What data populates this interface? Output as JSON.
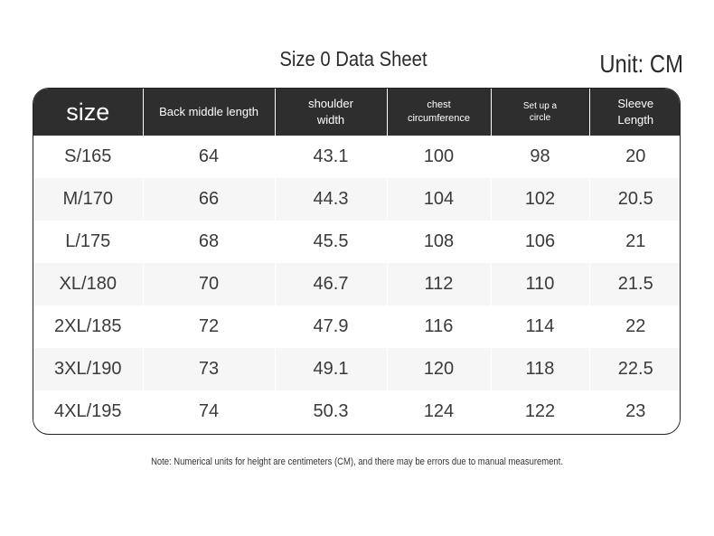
{
  "title": "Size 0 Data Sheet",
  "unit": "Unit: CM",
  "columns": [
    "size",
    "Back middle length",
    "shoulder width",
    "chest circumference",
    "Set up a circle",
    "Sleeve Length"
  ],
  "rows": [
    [
      "S/165",
      "64",
      "43.1",
      "100",
      "98",
      "20"
    ],
    [
      "M/170",
      "66",
      "44.3",
      "104",
      "102",
      "20.5"
    ],
    [
      "L/175",
      "68",
      "45.5",
      "108",
      "106",
      "21"
    ],
    [
      "XL/180",
      "70",
      "46.7",
      "112",
      "110",
      "21.5"
    ],
    [
      "2XL/185",
      "72",
      "47.9",
      "116",
      "114",
      "22"
    ],
    [
      "3XL/190",
      "73",
      "49.1",
      "120",
      "118",
      "22.5"
    ],
    [
      "4XL/195",
      "74",
      "50.3",
      "124",
      "122",
      "23"
    ]
  ],
  "note": "Note: Numerical units for height are centimeters (CM), and there may be errors due to manual measurement.",
  "colors": {
    "header_bg": "#2e2e2e",
    "header_text": "#ffffff",
    "row_alt": "#f6f6f6"
  }
}
